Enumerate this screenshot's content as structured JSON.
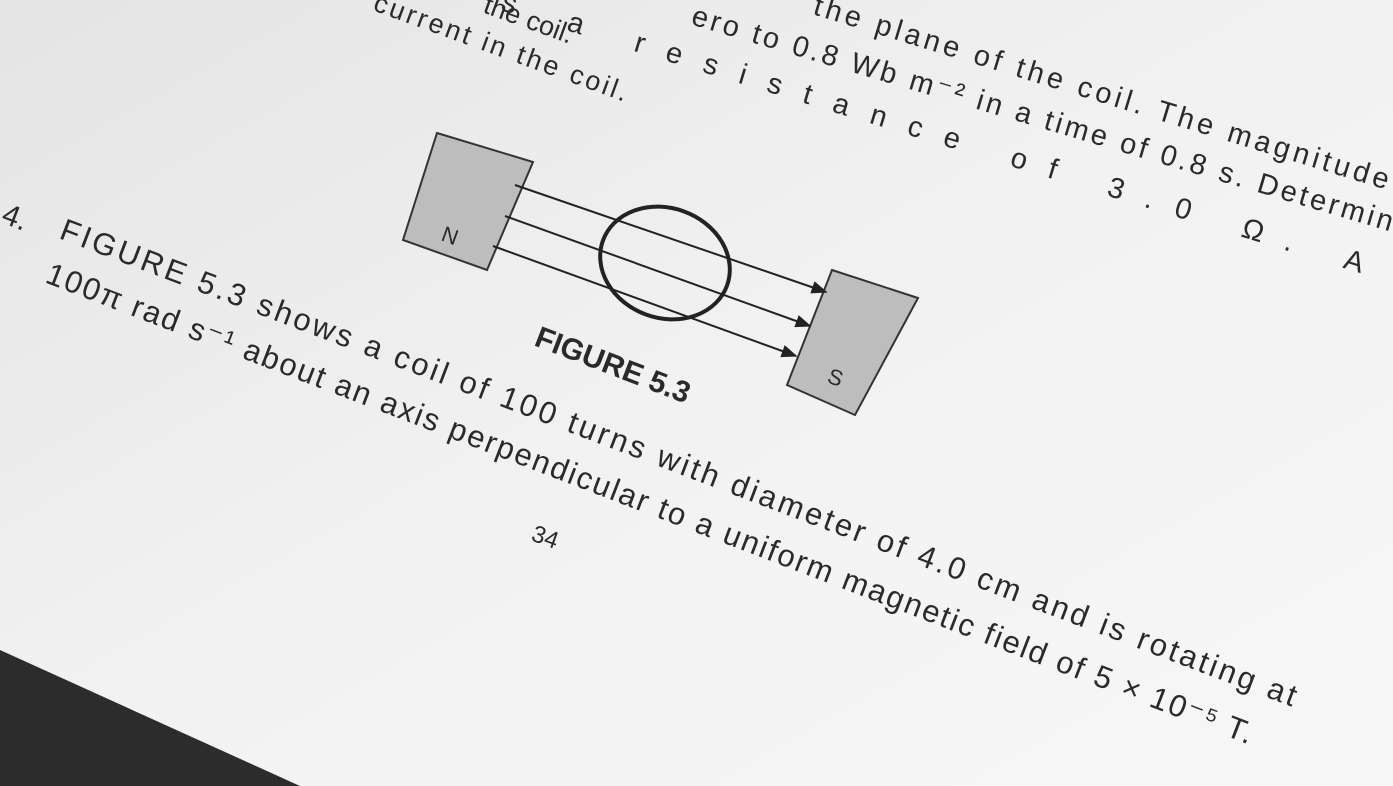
{
  "page": {
    "top_left_lines": [
      "the coil.",
      "current in the coil."
    ],
    "top_right_lines": [
      "s a resistance of 3.0 Ω. A",
      "the plane of the coil. The magnitude",
      "ero to 0.8 Wb m⁻² in a time of 0.8 s. Determin"
    ],
    "figure": {
      "north_label": "N",
      "south_label": "S",
      "caption": "FIGURE 5.3"
    },
    "question": {
      "number": "4.",
      "lines": [
        "FIGURE 5.3 shows a coil of 100 turns with diameter of 4.0 cm and is rotating at",
        "100π rad s⁻¹ about an axis perpendicular to a uniform magnetic field of 5 × 10⁻⁵ T."
      ]
    },
    "page_number": "34"
  }
}
